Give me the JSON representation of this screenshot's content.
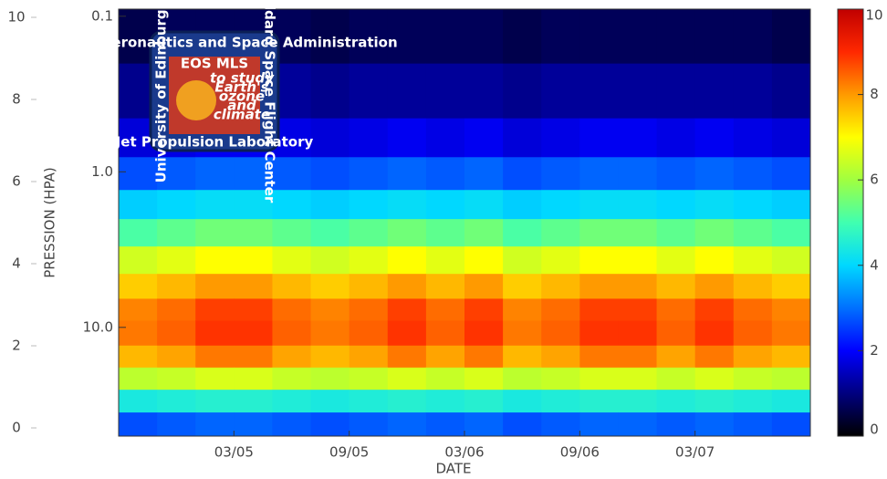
{
  "chart_data": {
    "type": "heatmap",
    "xlabel": "DATE",
    "ylabel": "PRESSION (HPA)",
    "categories": [
      null,
      null,
      null,
      "03/05",
      null,
      null,
      "09/05",
      null,
      null,
      "03/06",
      null,
      null,
      "09/06",
      null,
      null,
      "03/07",
      null,
      null
    ],
    "y_edges": [
      50,
      35,
      25,
      18,
      13,
      9,
      6.5,
      4.5,
      3,
      2,
      1.3,
      0.8,
      0.45,
      0.2,
      0.09
    ],
    "ylim": [
      50,
      0.09
    ],
    "log_y": true,
    "yticks": [
      0.1,
      {
        "value": 1,
        "label": "1.0"
      },
      {
        "value": 10,
        "label": "10.0"
      }
    ],
    "y2lim": [
      -0.2,
      10.2
    ],
    "y2ticks": [
      0,
      2,
      4,
      6,
      8,
      10
    ],
    "colorlim": [
      0,
      10
    ],
    "colorticks": [
      0,
      2,
      4,
      6,
      8,
      10
    ],
    "colormap": [
      "#000000",
      "#00007f",
      "#0000ff",
      "#0070ff",
      "#00d8ff",
      "#40ffb0",
      "#a0ff40",
      "#ffff00",
      "#ff9a00",
      "#ff2800",
      "#c00000"
    ],
    "values": [
      [
        2.7,
        4.4,
        6.3,
        7.7,
        8.3,
        8.2,
        7.5,
        6.5,
        5.1,
        3.9,
        2.7,
        1.7,
        1.1,
        0.6
      ],
      [
        2.8,
        4.5,
        6.4,
        7.9,
        8.5,
        8.4,
        7.7,
        6.7,
        5.3,
        4.0,
        2.8,
        1.8,
        1.2,
        0.7
      ],
      [
        2.9,
        4.6,
        6.6,
        8.3,
        8.9,
        8.8,
        8.0,
        7.0,
        5.5,
        4.1,
        2.9,
        1.9,
        1.2,
        0.7
      ],
      [
        2.9,
        4.6,
        6.6,
        8.3,
        8.9,
        8.8,
        8.0,
        7.0,
        5.5,
        4.1,
        2.9,
        1.9,
        1.2,
        0.7
      ],
      [
        2.8,
        4.5,
        6.4,
        7.9,
        8.5,
        8.4,
        7.7,
        6.7,
        5.3,
        4.0,
        2.8,
        1.8,
        1.2,
        0.7
      ],
      [
        2.7,
        4.4,
        6.3,
        7.7,
        8.3,
        8.2,
        7.5,
        6.5,
        5.1,
        3.9,
        2.7,
        1.7,
        1.1,
        0.6
      ],
      [
        2.8,
        4.5,
        6.4,
        7.9,
        8.5,
        8.4,
        7.7,
        6.7,
        5.3,
        4.0,
        2.8,
        1.8,
        1.2,
        0.7
      ],
      [
        2.9,
        4.6,
        6.6,
        8.3,
        8.9,
        8.8,
        8.0,
        7.0,
        5.5,
        4.1,
        2.9,
        1.9,
        1.2,
        0.7
      ],
      [
        2.8,
        4.5,
        6.4,
        7.9,
        8.5,
        8.4,
        7.7,
        6.7,
        5.3,
        4.0,
        2.8,
        1.8,
        1.2,
        0.7
      ],
      [
        2.9,
        4.6,
        6.6,
        8.3,
        8.9,
        8.8,
        8.0,
        7.0,
        5.5,
        4.1,
        2.9,
        1.9,
        1.2,
        0.7
      ],
      [
        2.7,
        4.4,
        6.3,
        7.7,
        8.3,
        8.2,
        7.5,
        6.5,
        5.1,
        3.9,
        2.7,
        1.7,
        1.1,
        0.6
      ],
      [
        2.8,
        4.5,
        6.4,
        7.9,
        8.5,
        8.4,
        7.7,
        6.7,
        5.3,
        4.0,
        2.8,
        1.8,
        1.2,
        0.7
      ],
      [
        2.9,
        4.6,
        6.6,
        8.3,
        8.9,
        8.8,
        8.0,
        7.0,
        5.5,
        4.1,
        2.9,
        1.9,
        1.2,
        0.7
      ],
      [
        2.9,
        4.6,
        6.6,
        8.3,
        8.9,
        8.8,
        8.0,
        7.0,
        5.5,
        4.1,
        2.9,
        1.9,
        1.2,
        0.7
      ],
      [
        2.8,
        4.5,
        6.4,
        7.9,
        8.5,
        8.4,
        7.7,
        6.7,
        5.3,
        4.0,
        2.8,
        1.8,
        1.2,
        0.7
      ],
      [
        2.9,
        4.6,
        6.6,
        8.3,
        8.9,
        8.8,
        8.0,
        7.0,
        5.5,
        4.1,
        2.9,
        1.9,
        1.2,
        0.7
      ],
      [
        2.8,
        4.5,
        6.4,
        7.9,
        8.5,
        8.4,
        7.7,
        6.7,
        5.3,
        4.0,
        2.8,
        1.8,
        1.2,
        0.7
      ],
      [
        2.7,
        4.4,
        6.3,
        7.7,
        8.3,
        8.2,
        7.5,
        6.5,
        5.1,
        3.9,
        2.7,
        1.7,
        1.1,
        0.6
      ]
    ],
    "logo": {
      "agency": "National Aeronautics and Space Administration",
      "title": "EOS MLS",
      "tagline_1": "to study",
      "tagline_2": "Earth's",
      "tagline_3": "ozone",
      "tagline_4": "and",
      "tagline_5": "climate",
      "left": "University of Edinburgh",
      "right": "Goddard Space Flight Center",
      "bottom": "Jet Propulsion Laboratory"
    }
  }
}
